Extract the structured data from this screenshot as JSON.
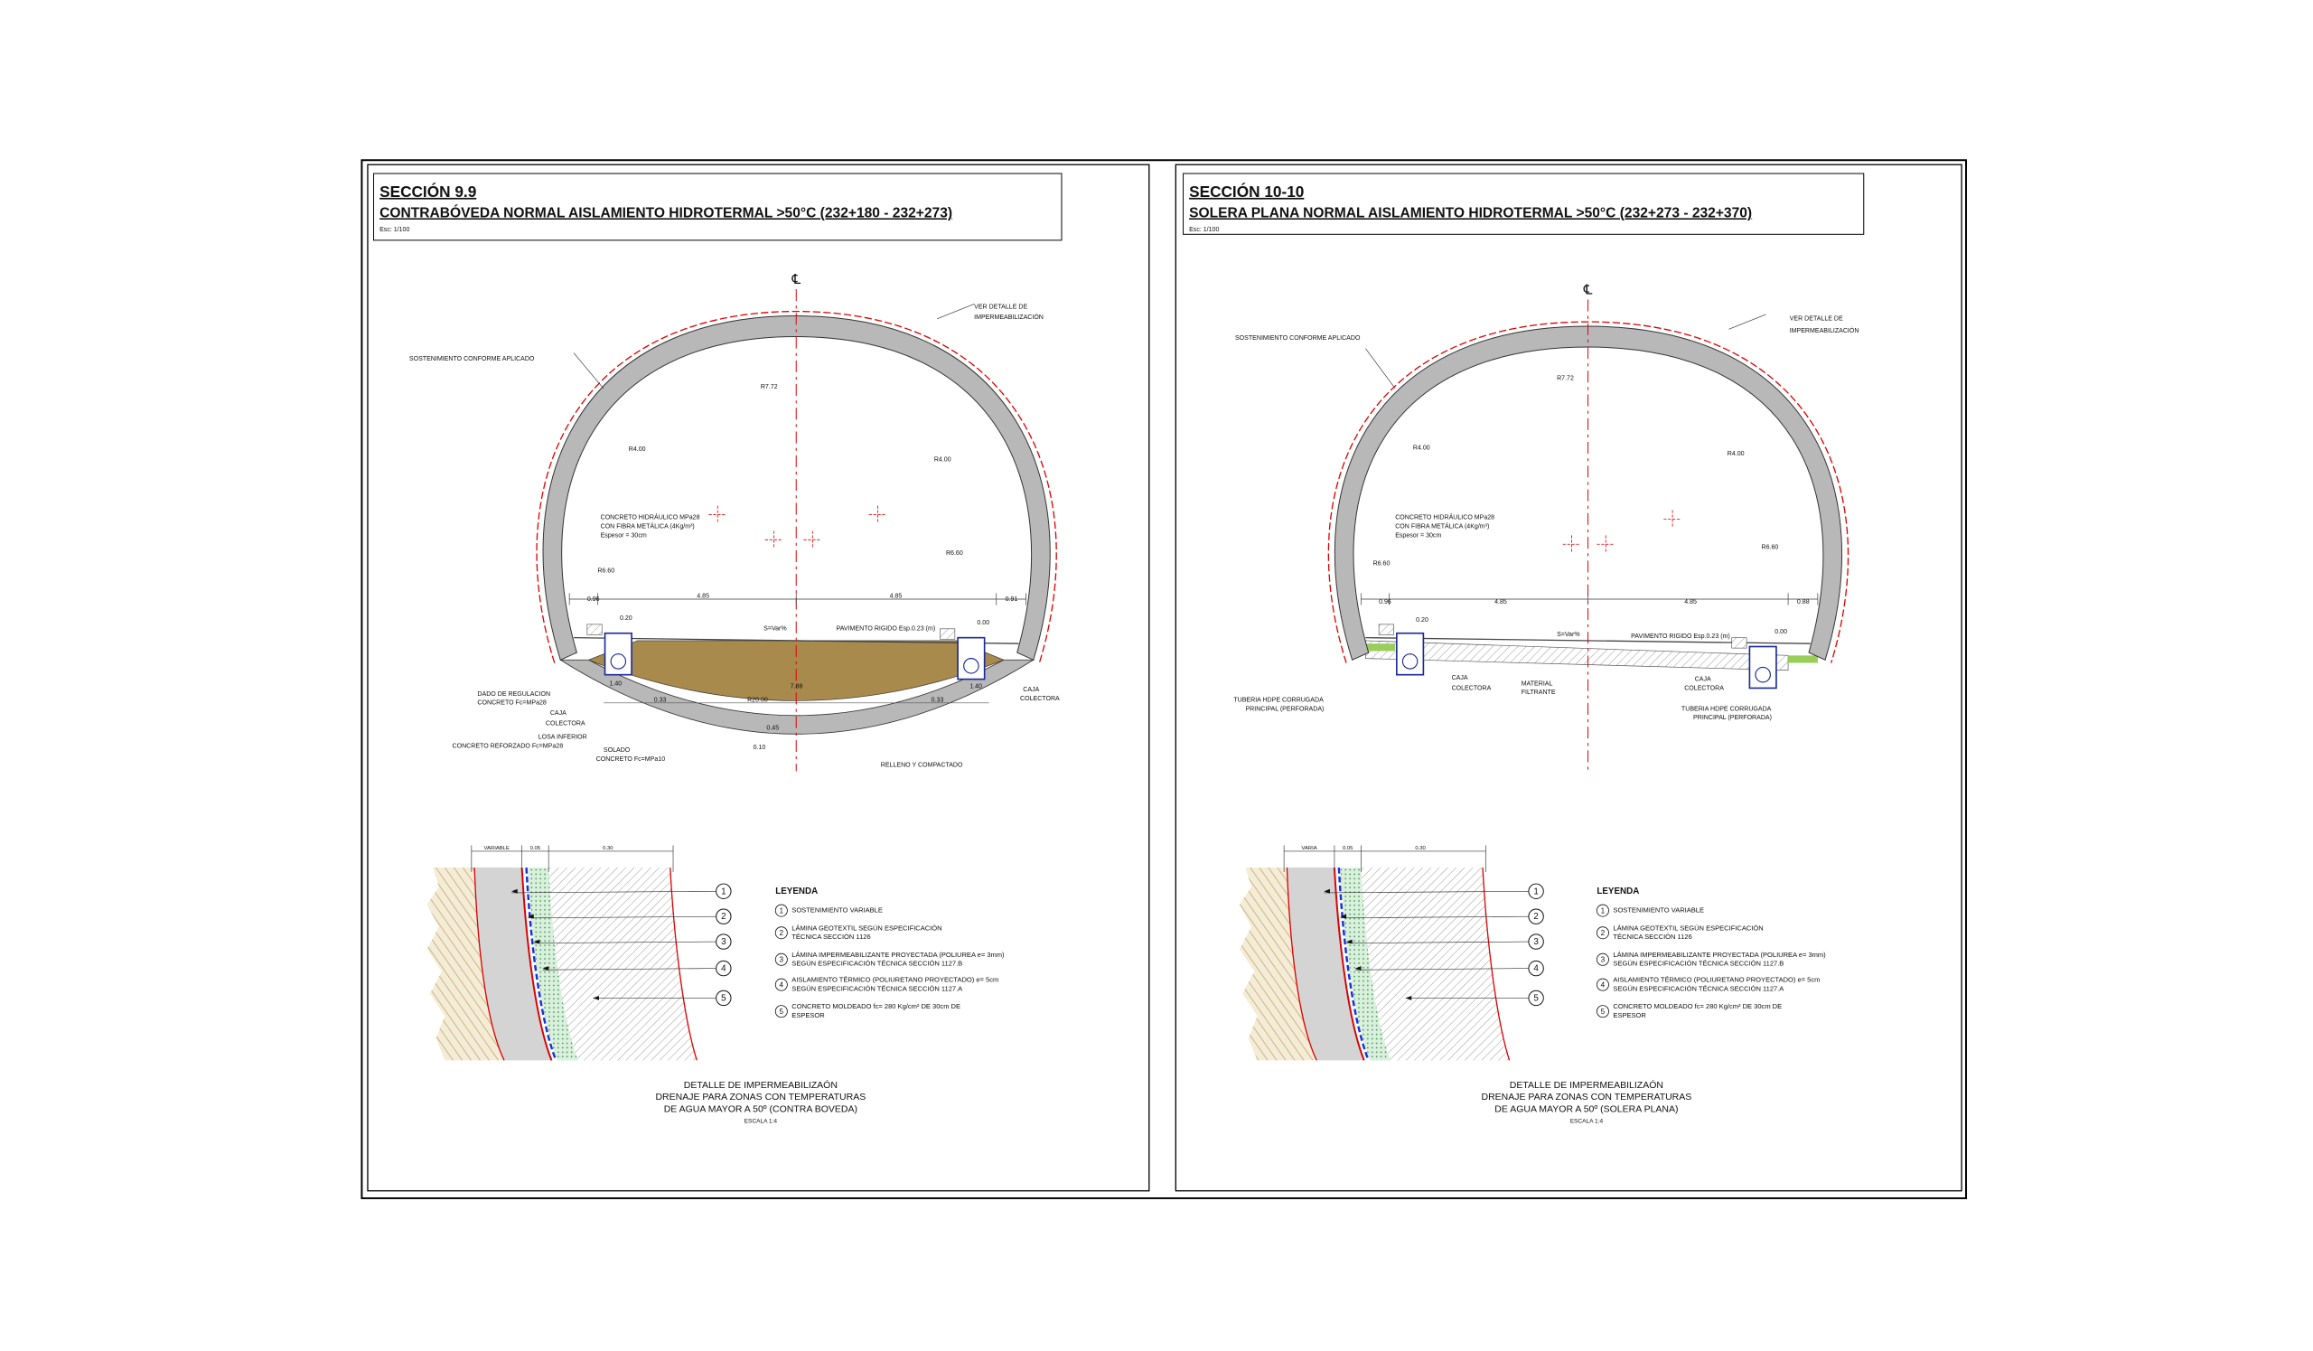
{
  "panels": [
    {
      "section": "SECCIÓN 9.9",
      "title": "CONTRABÓVEDA NORMAL AISLAMIENTO HIDROTERMAL >50°C (232+180 - 232+273)",
      "scale": "Esc: 1/100",
      "centerline": "℄",
      "labels": [
        "VER DETALLE DE",
        "IMPERMEABILIZACIÓN",
        "SOSTENIMIENTO CONFORME APLICADO",
        "R7.72",
        "R4.00",
        "R4.00",
        "CONCRETO HIDRÁULICO MPa28",
        "CON FIBRA METÁLICA (4Kg/m³)",
        "Espesor = 30cm",
        "R6.60",
        "R6.60",
        "0.96",
        "4.85",
        "4.85",
        "0.91",
        "0.20",
        "0.00",
        "S=Var%",
        "PAVIMENTO RIGIDO Esp.0.23 (m)",
        "1.40",
        "1.40",
        "7.88",
        "0.33",
        "0.33",
        "R20.00",
        "CAJA",
        "COLECTORA",
        "DADO DE REGULACION",
        "CONCRETO Fc=MPa28",
        "CAJA",
        "COLECTORA",
        "LOSA INFERIOR",
        "CONCRETO REFORZADO Fc=MPa28",
        "0.45",
        "0.10",
        "SOLADO",
        "CONCRETO Fc=MPa10",
        "RELLENO Y COMPACTADO"
      ],
      "detail": {
        "dims": [
          "VARIABLE",
          "0.05",
          "0.30"
        ],
        "callouts": [
          "1",
          "2",
          "3",
          "4",
          "5"
        ],
        "legend_title": "LEYENDA",
        "legend": [
          {
            "num": "1",
            "text": [
              "SOSTENIMIENTO VARIABLE"
            ]
          },
          {
            "num": "2",
            "text": [
              "LÁMINA GEOTEXTIL SEGÚN ESPECIFICACIÓN",
              "TÉCNICA SECCIÓN 1126"
            ]
          },
          {
            "num": "3",
            "text": [
              "LÁMINA IMPERMEABILIZANTE PROYECTADA (POLIUREA e= 3mm)",
              "SEGÚN ESPECIFICACIÓN TÉCNICA SECCIÓN 1127.B"
            ]
          },
          {
            "num": "4",
            "text": [
              "AISLAMIENTO TÉRMICO (POLIURETANO PROYECTADO) e= 5cm",
              "SEGÚN ESPECIFICACIÓN TÉCNICA SECCIÓN 1127.A"
            ]
          },
          {
            "num": "5",
            "text": [
              "CONCRETO MOLDEADO fc= 280 Kg/cm² DE 30cm DE",
              "ESPESOR"
            ]
          }
        ],
        "title": [
          "DETALLE DE IMPERMEABILIZAÓN",
          "DRENAJE PARA ZONAS CON TEMPERATURAS",
          "DE AGUA MAYOR A 50º (CONTRA BOVEDA)"
        ],
        "scale": "ESCALA 1:4"
      }
    },
    {
      "section": "SECCIÓN 10-10",
      "title": "SOLERA PLANA NORMAL AISLAMIENTO HIDROTERMAL >50°C (232+273 - 232+370)",
      "scale": "Esc: 1/100",
      "centerline": "℄",
      "labels": [
        "VER DETALLE DE",
        "IMPERMEABILIZACIÓN",
        "SOSTENIMIENTO CONFORME APLICADO",
        "R7.72",
        "R4.00",
        "R4.00",
        "CONCRETO HIDRÁULICO MPa28",
        "CON FIBRA METÁLICA (4Kg/m³)",
        "Espesor = 30cm",
        "R6.60",
        "R6.60",
        "0.96",
        "4.85",
        "4.85",
        "0.88",
        "0.20",
        "0.00",
        "S=Var%",
        "PAVIMENTO RIGIDO Esp.0.23 (m)",
        "CAJA",
        "COLECTORA",
        "MATERIAL",
        "FILTRANTE",
        "CAJA",
        "COLECTORA",
        "TUBERIA HDPE CORRUGADA",
        "PRINCIPAL (PERFORADA)",
        "TUBERIA HDPE CORRUGADA",
        "PRINCIPAL (PERFORADA)"
      ],
      "detail": {
        "dims": [
          "VARIA",
          "0.05",
          "0.30"
        ],
        "callouts": [
          "1",
          "2",
          "3",
          "4",
          "5"
        ],
        "legend_title": "LEYENDA",
        "legend": [
          {
            "num": "1",
            "text": [
              "SOSTENIMIENTO VARIABLE"
            ]
          },
          {
            "num": "2",
            "text": [
              "LÁMINA GEOTEXTIL SEGÚN ESPECIFICACIÓN",
              "TÉCNICA SECCIÓN 1126"
            ]
          },
          {
            "num": "3",
            "text": [
              "LÁMINA IMPERMEABILIZANTE PROYECTADA (POLIUREA e= 3mm)",
              "SEGÚN ESPECIFICACIÓN TÉCNICA SECCIÓN 1127.B"
            ]
          },
          {
            "num": "4",
            "text": [
              "AISLAMIENTO TÉRMICO (POLIURETANO PROYECTADO) e= 5cm",
              "SEGÚN ESPECIFICACIÓN TÉCNICA SECCIÓN 1127.A"
            ]
          },
          {
            "num": "5",
            "text": [
              "CONCRETO MOLDEADO fc= 280 Kg/cm² DE 30cm DE",
              "ESPESOR"
            ]
          }
        ],
        "title": [
          "DETALLE DE IMPERMEABILIZAÓN",
          "DRENAJE PARA ZONAS CON TEMPERATURAS",
          "DE AGUA MAYOR A 50º (SOLERA PLANA)"
        ],
        "scale": "ESCALA 1:4"
      }
    }
  ]
}
